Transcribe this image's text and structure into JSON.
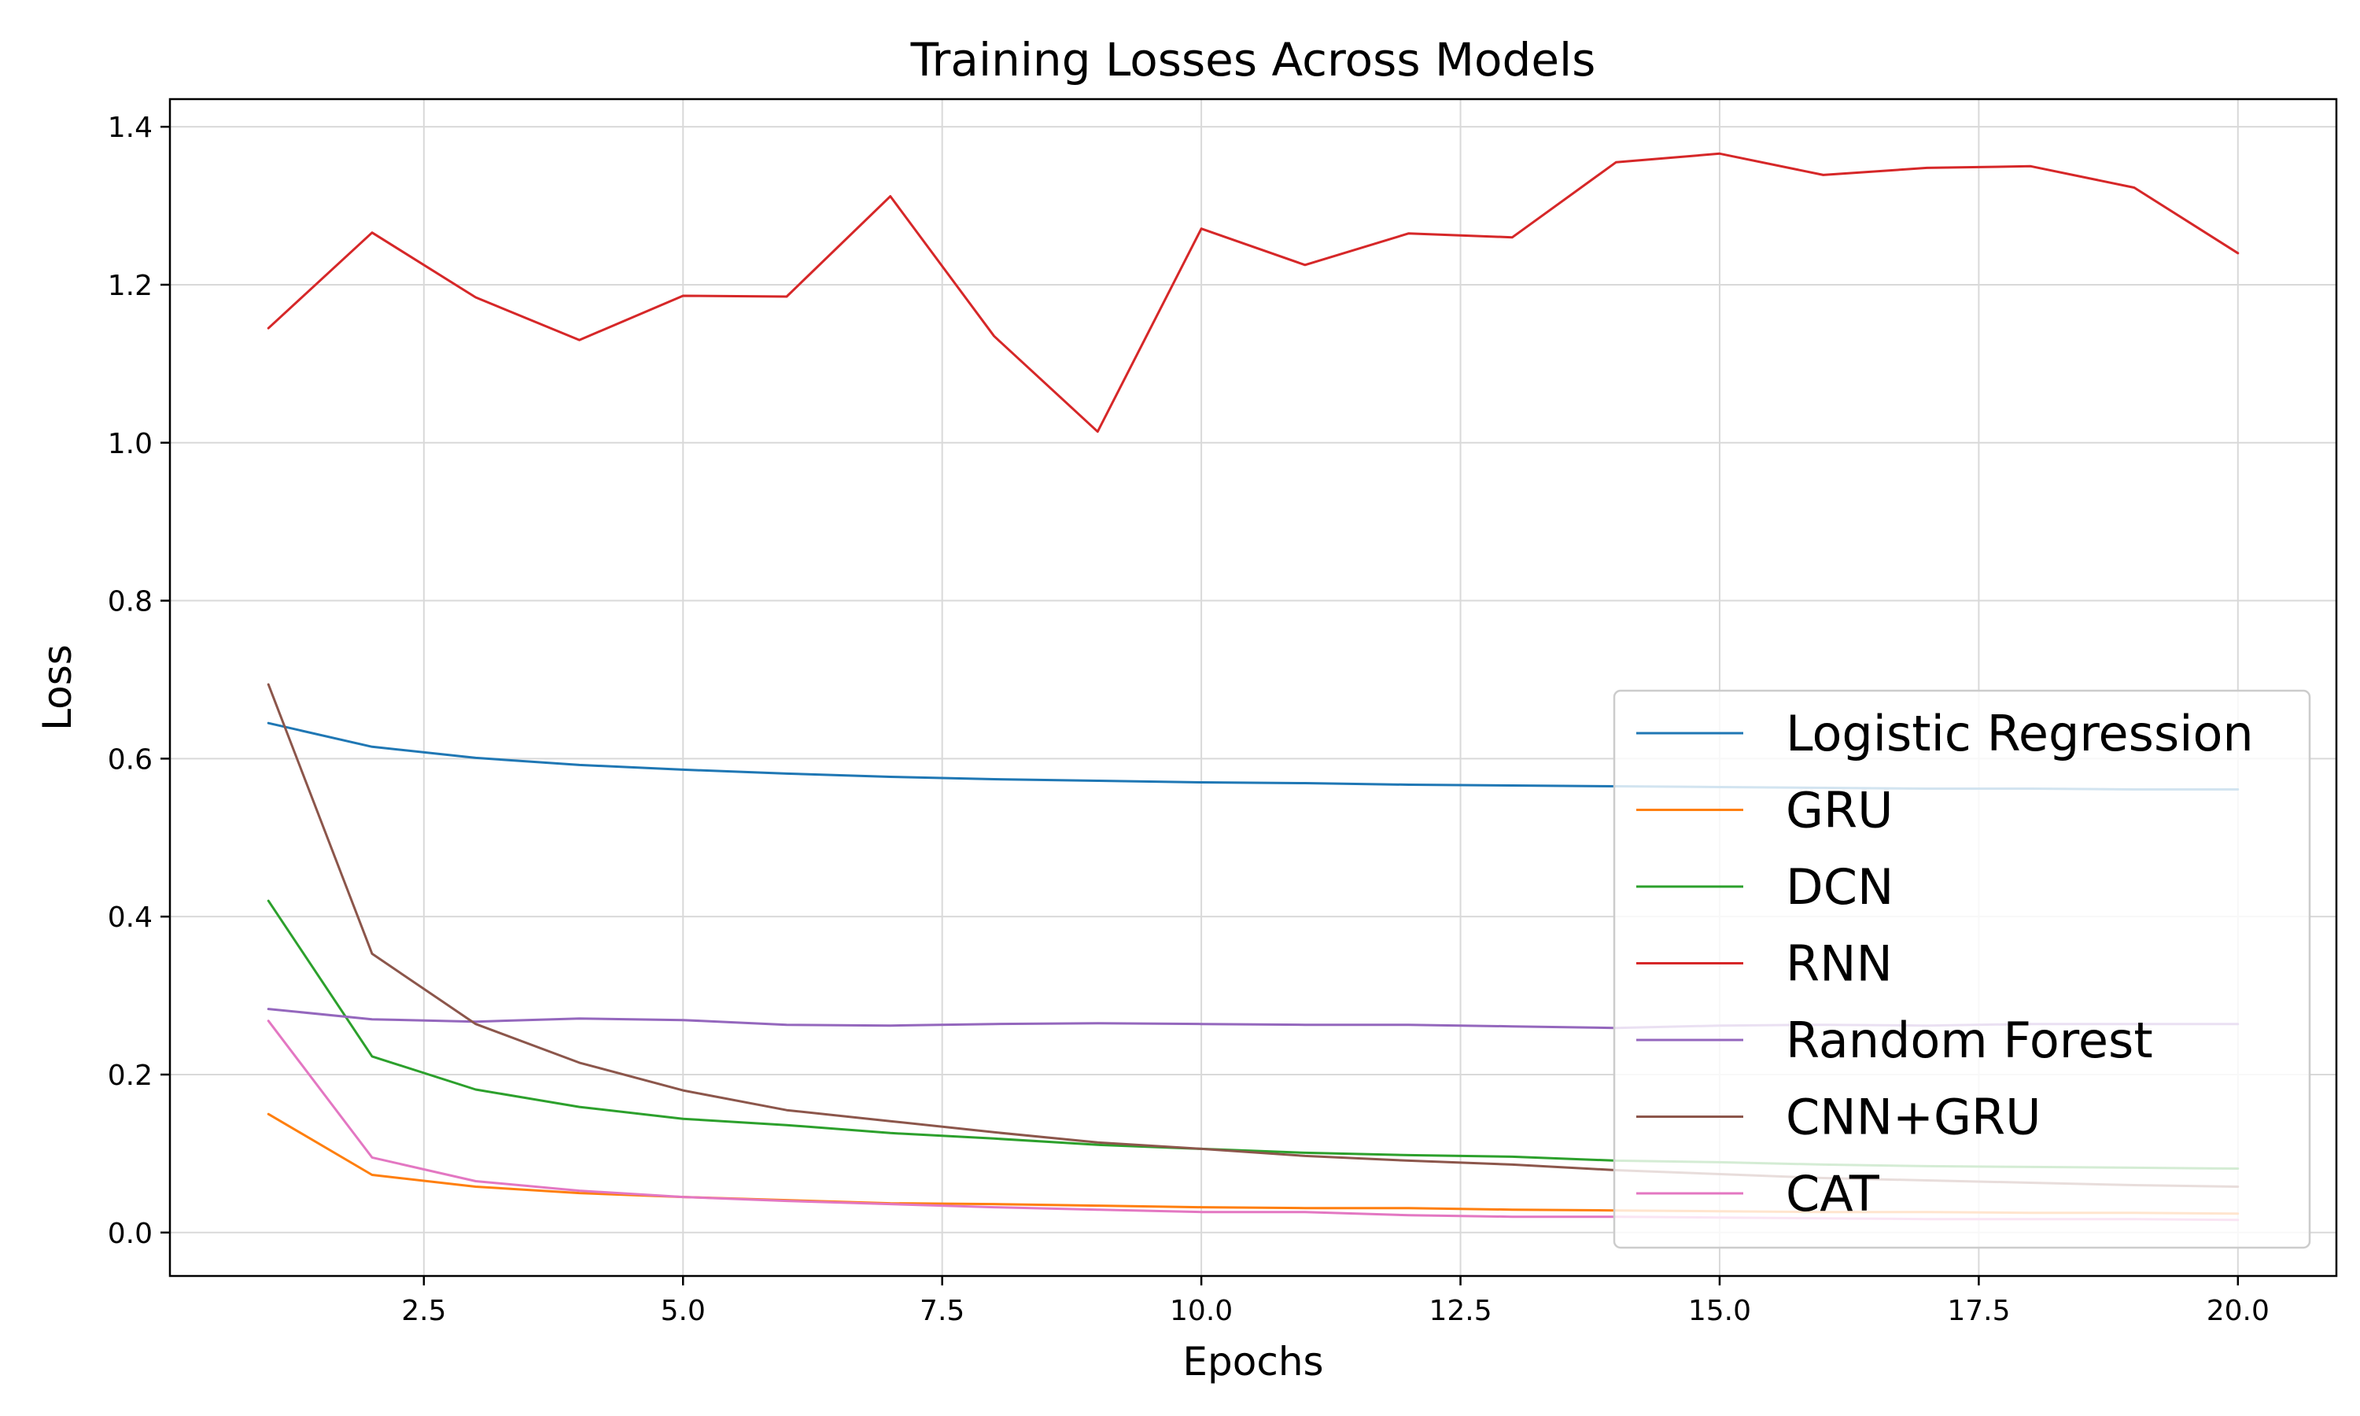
{
  "chart_data": {
    "type": "line",
    "title": "Training Losses Across Models",
    "xlabel": "Epochs",
    "ylabel": "Loss",
    "xlim": [
      0.05,
      20.95
    ],
    "ylim": [
      -0.055,
      1.435
    ],
    "xticks": [
      2.5,
      5.0,
      7.5,
      10.0,
      12.5,
      15.0,
      17.5,
      20.0
    ],
    "xtick_labels": [
      "2.5",
      "5.0",
      "7.5",
      "10.0",
      "12.5",
      "15.0",
      "17.5",
      "20.0"
    ],
    "yticks": [
      0.0,
      0.2,
      0.4,
      0.6,
      0.8,
      1.0,
      1.2,
      1.4
    ],
    "ytick_labels": [
      "0.0",
      "0.2",
      "0.4",
      "0.6",
      "0.8",
      "1.0",
      "1.2",
      "1.4"
    ],
    "grid": true,
    "legend_position": "lower-right",
    "x": [
      1,
      2,
      3,
      4,
      5,
      6,
      7,
      8,
      9,
      10,
      11,
      12,
      13,
      14,
      15,
      16,
      17,
      18,
      19,
      20
    ],
    "series": [
      {
        "name": "Logistic Regression",
        "color": "#1f77b4",
        "values": [
          0.645,
          0.615,
          0.601,
          0.592,
          0.586,
          0.581,
          0.577,
          0.574,
          0.572,
          0.57,
          0.569,
          0.567,
          0.566,
          0.565,
          0.564,
          0.563,
          0.562,
          0.562,
          0.561,
          0.561
        ]
      },
      {
        "name": "GRU",
        "color": "#ff7f0e",
        "values": [
          0.15,
          0.073,
          0.058,
          0.05,
          0.045,
          0.041,
          0.037,
          0.036,
          0.034,
          0.032,
          0.031,
          0.031,
          0.029,
          0.028,
          0.027,
          0.026,
          0.026,
          0.025,
          0.025,
          0.024
        ]
      },
      {
        "name": "DCN",
        "color": "#2ca02c",
        "values": [
          0.42,
          0.223,
          0.181,
          0.159,
          0.144,
          0.136,
          0.126,
          0.119,
          0.111,
          0.106,
          0.101,
          0.098,
          0.096,
          0.091,
          0.089,
          0.086,
          0.084,
          0.083,
          0.082,
          0.081
        ]
      },
      {
        "name": "RNN",
        "color": "#d62728",
        "values": [
          1.145,
          1.266,
          1.184,
          1.13,
          1.186,
          1.185,
          1.312,
          1.135,
          1.014,
          1.271,
          1.225,
          1.265,
          1.26,
          1.355,
          1.366,
          1.339,
          1.348,
          1.35,
          1.323,
          1.24
        ]
      },
      {
        "name": "Random Forest",
        "color": "#9467bd",
        "values": [
          0.283,
          0.27,
          0.267,
          0.271,
          0.269,
          0.263,
          0.262,
          0.264,
          0.265,
          0.264,
          0.263,
          0.263,
          0.261,
          0.259,
          0.262,
          0.263,
          0.262,
          0.264,
          0.264,
          0.264
        ]
      },
      {
        "name": "CNN+GRU",
        "color": "#8c564b",
        "values": [
          0.694,
          0.353,
          0.264,
          0.215,
          0.18,
          0.155,
          0.141,
          0.127,
          0.114,
          0.106,
          0.097,
          0.091,
          0.086,
          0.079,
          0.074,
          0.069,
          0.066,
          0.063,
          0.06,
          0.058
        ]
      },
      {
        "name": "CAT",
        "color": "#e377c2",
        "values": [
          0.268,
          0.095,
          0.065,
          0.053,
          0.045,
          0.04,
          0.036,
          0.032,
          0.029,
          0.026,
          0.026,
          0.022,
          0.02,
          0.02,
          0.019,
          0.018,
          0.017,
          0.017,
          0.017,
          0.016
        ]
      }
    ]
  }
}
